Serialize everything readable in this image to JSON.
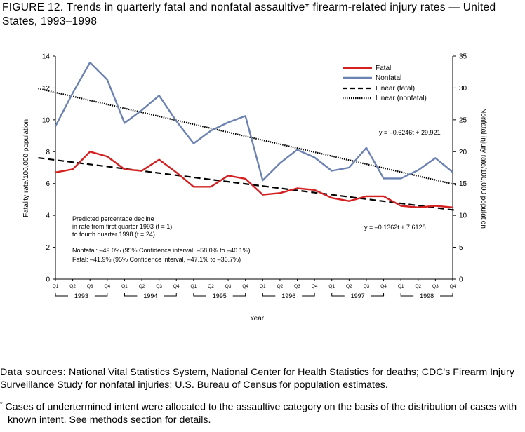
{
  "figure_title": "FIGURE 12. Trends in quarterly fatal and nonfatal assaultive* firearm-related injury rates — United States, 1993–1998",
  "annotation": {
    "lines": [
      "Predicted percentage decline",
      "in rate from first quarter 1993 (t = 1)",
      "to fourth quarter 1998 (t = 24)"
    ],
    "nonfatal": "Nonfatal: –49.0% (95% Confidence interval, –58.0% to –40.1%)",
    "fatal": "Fatal: –41.9% (95% Confidence interval, –47.1% to –36.7%)"
  },
  "footnotes": {
    "source_label": "Data sources:",
    "source_text": "National Vital Statistics System, National Center for Health Statistics for deaths; CDC's Firearm Injury Surveillance Study for nonfatal injuries; U.S. Bureau of Census for population estimates.",
    "note_marker": "*",
    "note_text": "Cases of undertermined intent were allocated to the assaultive category on the basis of the distribution of cases with known intent. See methods section for details."
  },
  "chart_data": {
    "type": "line",
    "xlabel": "Year",
    "ylabel": "Fatality rate/100,000 population",
    "y2label": "Nonfatal injury rate/100,000 population",
    "ylim": [
      0,
      14
    ],
    "yticks": [
      "0",
      "2",
      "4",
      "6",
      "8",
      "10",
      "12",
      "14"
    ],
    "y2lim": [
      0,
      35
    ],
    "y2ticks": [
      "0",
      "5",
      "10",
      "15",
      "20",
      "25",
      "30",
      "35"
    ],
    "grid": false,
    "legend_position": "top-right",
    "quarter_labels": [
      "Q1",
      "Q2",
      "Q3",
      "Q4",
      "Q1",
      "Q2",
      "Q3",
      "Q4",
      "Q1",
      "Q2",
      "Q3",
      "Q4",
      "Q1",
      "Q2",
      "Q3",
      "Q4",
      "Q1",
      "Q2",
      "Q3",
      "Q4",
      "Q1",
      "Q2",
      "Q3",
      "Q4"
    ],
    "years": [
      "1993",
      "1994",
      "1995",
      "1996",
      "1997",
      "1998"
    ],
    "series": [
      {
        "name": "Fatal",
        "axis": "left",
        "color": "#d42020",
        "style": "solid",
        "values": [
          6.7,
          6.9,
          8.0,
          7.7,
          6.9,
          6.8,
          7.5,
          6.7,
          5.8,
          5.8,
          6.5,
          6.3,
          5.3,
          5.4,
          5.7,
          5.6,
          5.1,
          4.9,
          5.2,
          5.2,
          4.6,
          4.5,
          4.6,
          4.5
        ]
      },
      {
        "name": "Nonfatal",
        "axis": "right",
        "color": "#6c82b2",
        "style": "solid",
        "values": [
          24.0,
          29.2,
          34.0,
          31.3,
          24.5,
          26.5,
          28.8,
          24.8,
          21.3,
          23.3,
          24.6,
          25.6,
          15.5,
          18.2,
          20.3,
          19.1,
          17.0,
          17.5,
          20.6,
          15.8,
          15.8,
          17.1,
          19.0,
          16.8
        ]
      },
      {
        "name": "Linear (fatal)",
        "axis": "left",
        "color": "#000000",
        "style": "dashed",
        "intercept": 7.6128,
        "slope": -0.1362
      },
      {
        "name": "Linear (nonfatal)",
        "axis": "right",
        "color": "#000000",
        "style": "dotted",
        "intercept": 29.921,
        "slope": -0.6246
      }
    ],
    "equations": {
      "nonfatal": "y = –0.6246t + 29.921",
      "fatal": "y = –0.1362t + 7.6128"
    }
  }
}
